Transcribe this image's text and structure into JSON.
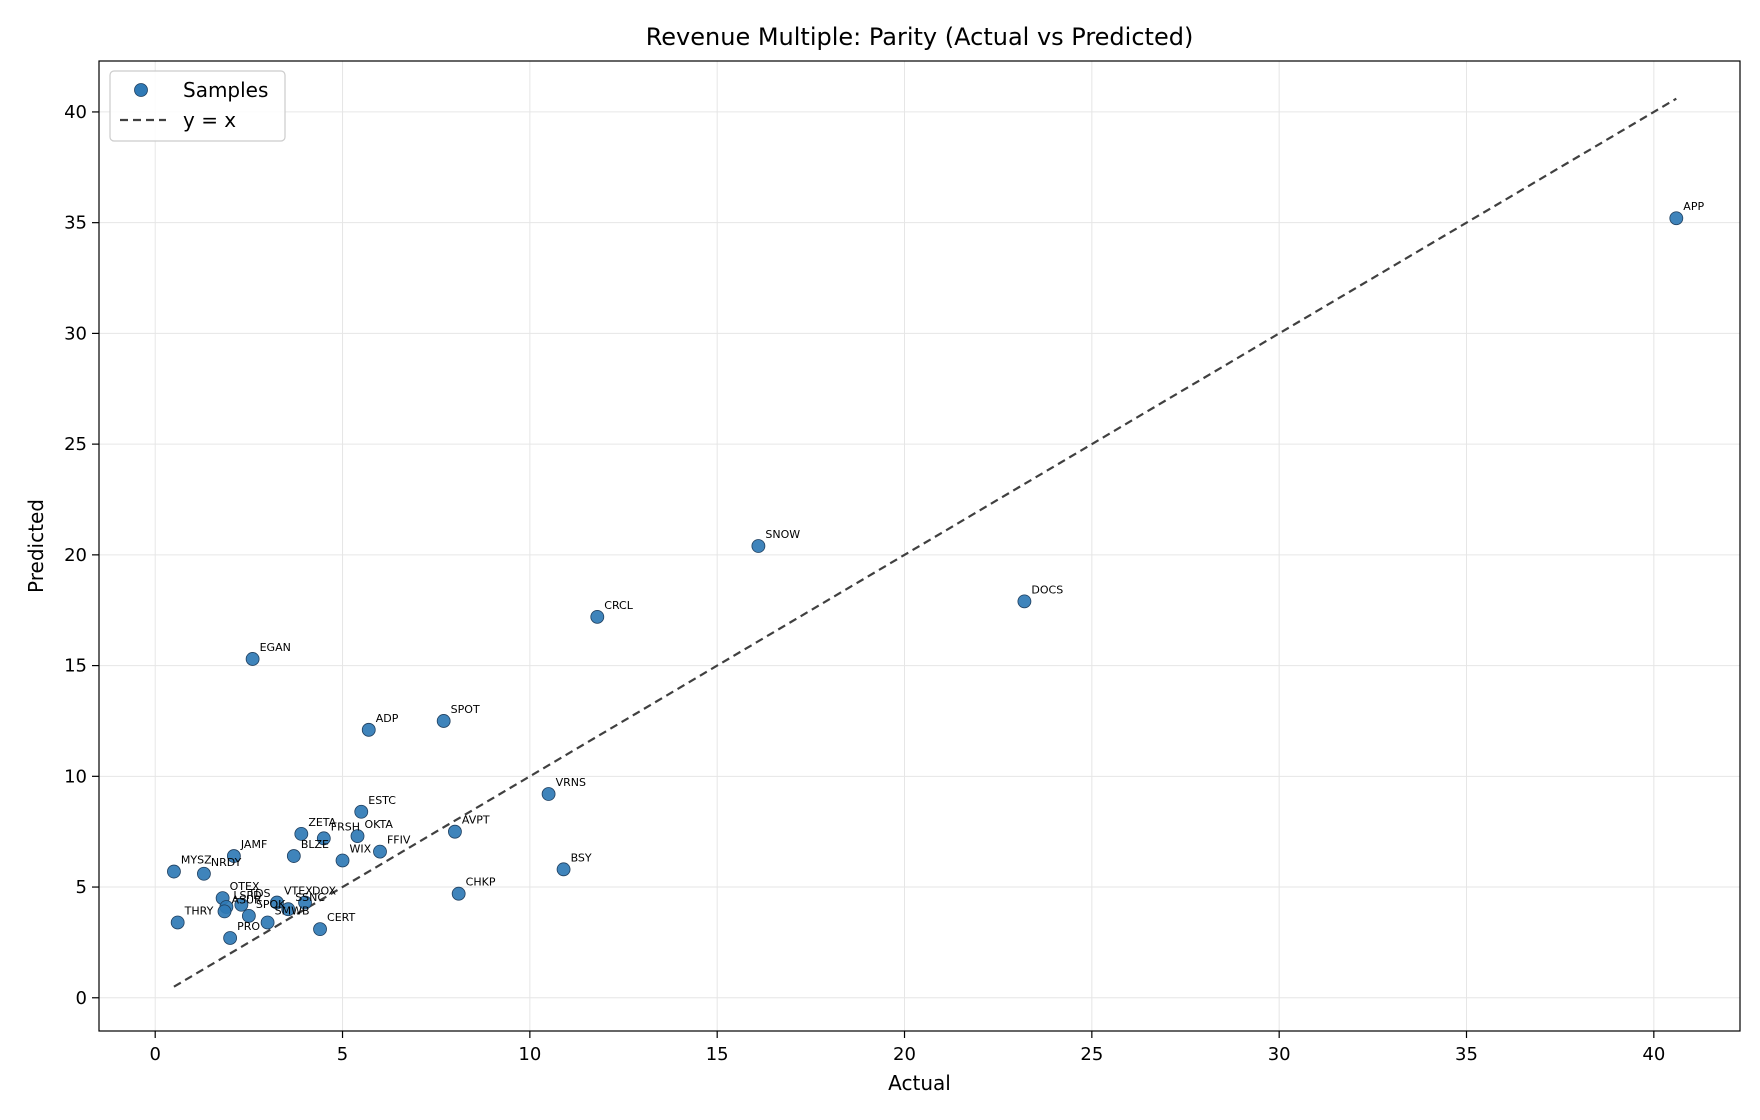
{
  "chart_data": {
    "type": "scatter",
    "title": "Revenue Multiple: Parity (Actual vs Predicted)",
    "xlabel": "Actual",
    "ylabel": "Predicted",
    "xlim": [
      -1.5,
      42.3
    ],
    "ylim": [
      -1.5,
      42.3
    ],
    "xticks": [
      0,
      5,
      10,
      15,
      20,
      25,
      30,
      35,
      40
    ],
    "yticks": [
      0,
      5,
      10,
      15,
      20,
      25,
      30,
      35,
      40
    ],
    "grid": true,
    "legend_position": "top-left",
    "colors": {
      "points": "#2f79b5",
      "point_edge": "#1f3f5f",
      "reference_line": "#404040"
    },
    "series": [
      {
        "name": "Samples",
        "points": [
          {
            "label": "APP",
            "x": 40.6,
            "y": 35.2
          },
          {
            "label": "SNOW",
            "x": 16.1,
            "y": 20.4
          },
          {
            "label": "DOCS",
            "x": 23.2,
            "y": 17.9
          },
          {
            "label": "CRCL",
            "x": 11.8,
            "y": 17.2
          },
          {
            "label": "EGAN",
            "x": 2.6,
            "y": 15.3
          },
          {
            "label": "SPOT",
            "x": 7.7,
            "y": 12.5
          },
          {
            "label": "ADP",
            "x": 5.7,
            "y": 12.1
          },
          {
            "label": "VRNS",
            "x": 10.5,
            "y": 9.2
          },
          {
            "label": "ESTC",
            "x": 5.5,
            "y": 8.4
          },
          {
            "label": "AVPT",
            "x": 8.0,
            "y": 7.5
          },
          {
            "label": "ZETA",
            "x": 3.9,
            "y": 7.4
          },
          {
            "label": "FRSH",
            "x": 4.5,
            "y": 7.2
          },
          {
            "label": "OKTA",
            "x": 5.4,
            "y": 7.3
          },
          {
            "label": "FFIV",
            "x": 6.0,
            "y": 6.6
          },
          {
            "label": "WIX",
            "x": 5.0,
            "y": 6.2
          },
          {
            "label": "BLZE",
            "x": 3.7,
            "y": 6.4
          },
          {
            "label": "JAMF",
            "x": 2.1,
            "y": 6.4
          },
          {
            "label": "MYSZ",
            "x": 0.5,
            "y": 5.7
          },
          {
            "label": "NRDY",
            "x": 1.3,
            "y": 5.6
          },
          {
            "label": "BSY",
            "x": 10.9,
            "y": 5.8
          },
          {
            "label": "CHKP",
            "x": 8.1,
            "y": 4.7
          },
          {
            "label": "OTEX",
            "x": 1.8,
            "y": 4.5
          },
          {
            "label": "LSPD",
            "x": 1.9,
            "y": 4.1
          },
          {
            "label": "ASUR",
            "x": 1.85,
            "y": 3.9
          },
          {
            "label": "TDS",
            "x": 2.3,
            "y": 4.2
          },
          {
            "label": "SPOK",
            "x": 2.5,
            "y": 3.7
          },
          {
            "label": "VTEX",
            "x": 3.25,
            "y": 4.3
          },
          {
            "label": "DOX",
            "x": 4.0,
            "y": 4.3
          },
          {
            "label": "SSNC",
            "x": 3.55,
            "y": 4.0
          },
          {
            "label": "SMWB",
            "x": 3.0,
            "y": 3.4
          },
          {
            "label": "THRY",
            "x": 0.6,
            "y": 3.4
          },
          {
            "label": "CERT",
            "x": 4.4,
            "y": 3.1
          },
          {
            "label": "PRO",
            "x": 2.0,
            "y": 2.7
          }
        ]
      }
    ],
    "reference_line": {
      "name": "y = x",
      "from": [
        0.5,
        0.5
      ],
      "to": [
        40.6,
        40.6
      ],
      "style": "dashed"
    },
    "legend": [
      "Samples",
      "y = x"
    ]
  }
}
